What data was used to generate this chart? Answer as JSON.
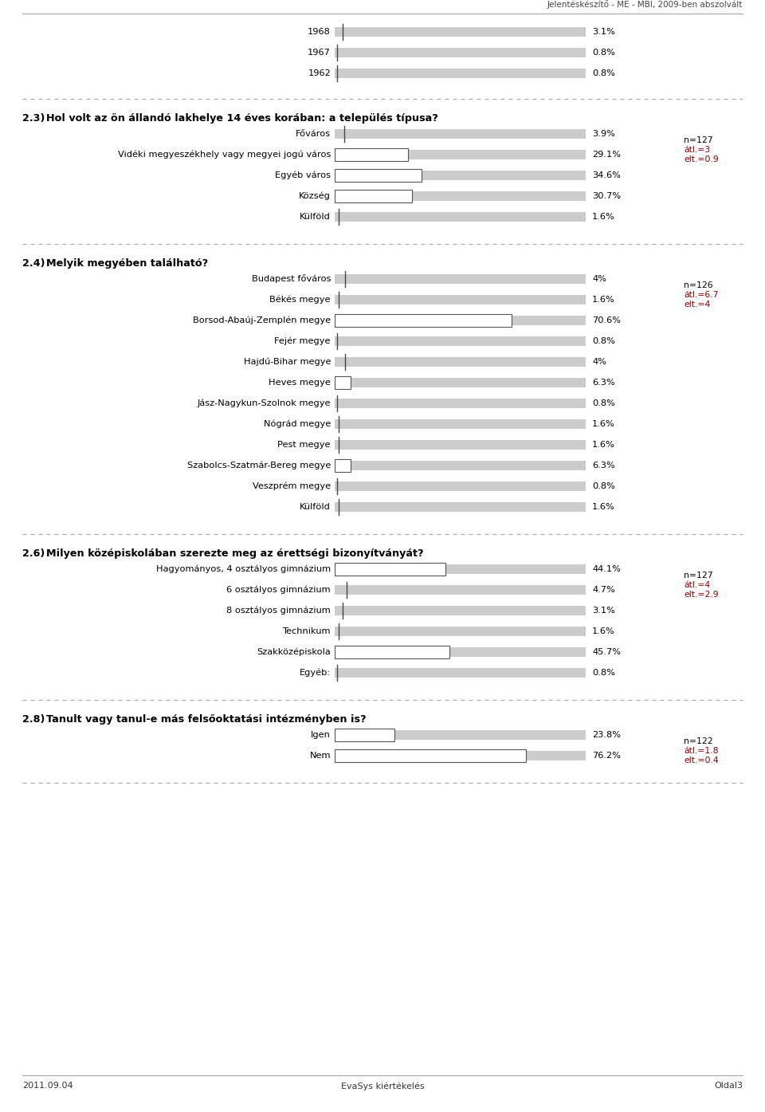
{
  "header_text": "Jelentéskészítő - ME - MBI, 2009-ben abszolvált",
  "footer_left": "2011.09.04",
  "footer_center": "EvaSys kiértékelés",
  "footer_right": "Oldal3",
  "bg_color": "#ffffff",
  "sections": [
    {
      "type": "continuation",
      "items": [
        {
          "label": "1968",
          "value": 3.1,
          "max_val": 100
        },
        {
          "label": "1967",
          "value": 0.8,
          "max_val": 100
        },
        {
          "label": "1962",
          "value": 0.8,
          "max_val": 100
        }
      ]
    },
    {
      "type": "question",
      "number": "2.3)",
      "question": "Hol volt az ön állandó lakhelye 14 éves korában: a település típusa?",
      "stats_n": "n=127",
      "stats_rest": "átl.=3\nelt.=0.9",
      "items": [
        {
          "label": "Főváros",
          "value": 3.9,
          "max_val": 100,
          "has_box": false
        },
        {
          "label": "Vidéki megyeszékhely vagy megyei jogú város",
          "value": 29.1,
          "max_val": 100,
          "has_box": true
        },
        {
          "label": "Egyéb város",
          "value": 34.6,
          "max_val": 100,
          "has_box": true
        },
        {
          "label": "Község",
          "value": 30.7,
          "max_val": 100,
          "has_box": true
        },
        {
          "label": "Külföld",
          "value": 1.6,
          "max_val": 100,
          "has_box": false
        }
      ]
    },
    {
      "type": "question",
      "number": "2.4)",
      "question": "Melyik megyében található?",
      "stats_n": "n=126",
      "stats_rest": "átl.=6.7\nelt.=4",
      "items": [
        {
          "label": "Budapest főváros",
          "value": 4.0,
          "max_val": 100,
          "has_box": false
        },
        {
          "label": "Békés megye",
          "value": 1.6,
          "max_val": 100,
          "has_box": false
        },
        {
          "label": "Borsod-Abaúj-Zemplén megye",
          "value": 70.6,
          "max_val": 100,
          "has_box": true
        },
        {
          "label": "Fejér megye",
          "value": 0.8,
          "max_val": 100,
          "has_box": false
        },
        {
          "label": "Hajdú-Bihar megye",
          "value": 4.0,
          "max_val": 100,
          "has_box": false
        },
        {
          "label": "Heves megye",
          "value": 6.3,
          "max_val": 100,
          "has_box": true
        },
        {
          "label": "Jász-Nagykun-Szolnok megye",
          "value": 0.8,
          "max_val": 100,
          "has_box": false
        },
        {
          "label": "Nógrád megye",
          "value": 1.6,
          "max_val": 100,
          "has_box": false
        },
        {
          "label": "Pest megye",
          "value": 1.6,
          "max_val": 100,
          "has_box": false
        },
        {
          "label": "Szabolcs-Szatmár-Bereg megye",
          "value": 6.3,
          "max_val": 100,
          "has_box": true
        },
        {
          "label": "Veszprém megye",
          "value": 0.8,
          "max_val": 100,
          "has_box": false
        },
        {
          "label": "Külföld",
          "value": 1.6,
          "max_val": 100,
          "has_box": false
        }
      ]
    },
    {
      "type": "question",
      "number": "2.6)",
      "question": "Milyen középiskolában szerezte meg az érettségi bizonyítványát?",
      "stats_n": "n=127",
      "stats_rest": "átl.=4\nelt.=2.9",
      "items": [
        {
          "label": "Hagyományos, 4 osztályos gimnázium",
          "value": 44.1,
          "max_val": 100,
          "has_box": true
        },
        {
          "label": "6 osztályos gimnázium",
          "value": 4.7,
          "max_val": 100,
          "has_box": false
        },
        {
          "label": "8 osztályos gimnázium",
          "value": 3.1,
          "max_val": 100,
          "has_box": false
        },
        {
          "label": "Technikum",
          "value": 1.6,
          "max_val": 100,
          "has_box": false
        },
        {
          "label": "Szakközépiskola",
          "value": 45.7,
          "max_val": 100,
          "has_box": true
        },
        {
          "label": "Egyéb:",
          "value": 0.8,
          "max_val": 100,
          "has_box": false
        }
      ]
    },
    {
      "type": "question",
      "number": "2.8)",
      "question": "Tanult vagy tanul-e más felsőoktatási intézményben is?",
      "stats_n": "n=122",
      "stats_rest": "átl.=1.8\nelt.=0.4",
      "items": [
        {
          "label": "Igen",
          "value": 23.8,
          "max_val": 100,
          "has_box": true
        },
        {
          "label": "Nem",
          "value": 76.2,
          "max_val": 100,
          "has_box": true
        }
      ]
    }
  ]
}
